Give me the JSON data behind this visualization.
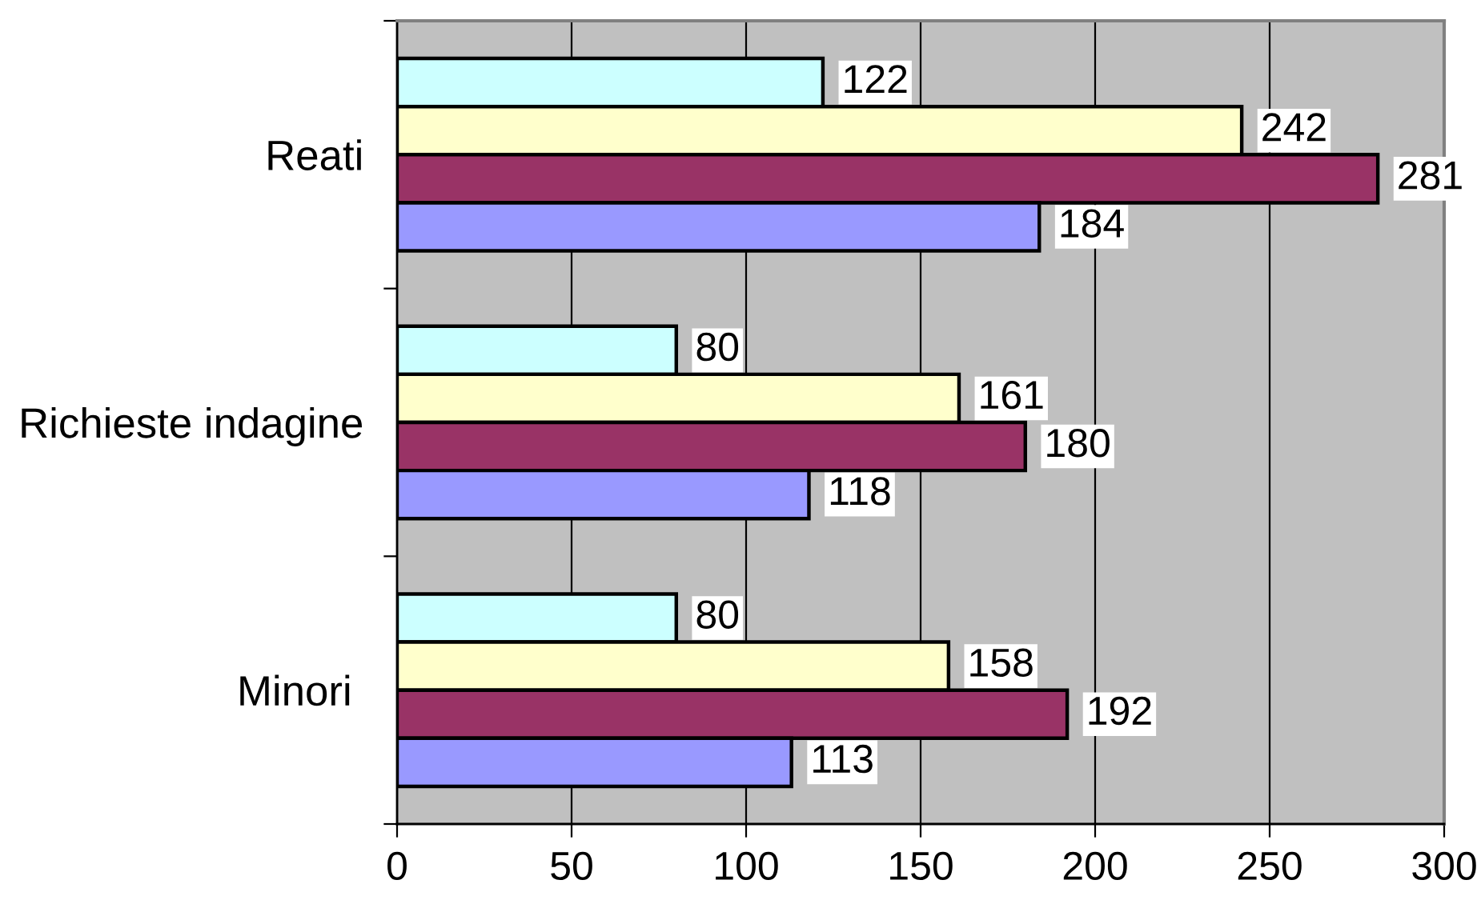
{
  "chart_data": {
    "type": "bar",
    "orientation": "horizontal",
    "categories": [
      "Reati",
      "Richieste indagine",
      "Minori "
    ],
    "series": [
      {
        "color": "#ccffff",
        "values": [
          122,
          80,
          80
        ]
      },
      {
        "color": "#ffffcc",
        "values": [
          242,
          161,
          158
        ]
      },
      {
        "color": "#993366",
        "values": [
          281,
          180,
          192
        ]
      },
      {
        "color": "#9999ff",
        "values": [
          184,
          118,
          113
        ]
      }
    ],
    "xlim": [
      0,
      300
    ],
    "xticks": [
      0,
      50,
      100,
      150,
      200,
      250,
      300
    ],
    "grid": "x",
    "data_labels": true
  }
}
